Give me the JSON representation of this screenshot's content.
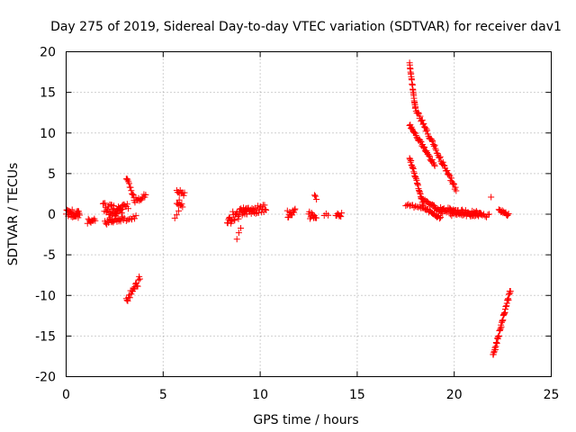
{
  "chart_data": {
    "type": "scatter",
    "title": "Day 275 of 2019, Sidereal Day-to-day VTEC variation (SDTVAR) for receiver dav1",
    "xlabel": "GPS time / hours",
    "ylabel": "SDTVAR / TECUs",
    "xlim": [
      0,
      25
    ],
    "ylim": [
      -20,
      20
    ],
    "xticks": [
      0,
      5,
      10,
      15,
      20,
      25
    ],
    "yticks": [
      -20,
      -15,
      -10,
      -5,
      0,
      5,
      10,
      15,
      20
    ],
    "grid": true,
    "marker": "+",
    "color": "#ff0000",
    "series": [
      {
        "name": "dav1",
        "segments": [
          {
            "x0": 0.0,
            "x1": 0.7,
            "y0": 0.2,
            "y1": 0.0,
            "jitter": 0.5,
            "n": 28
          },
          {
            "x0": 1.1,
            "x1": 1.5,
            "y0": -0.9,
            "y1": -0.7,
            "jitter": 0.3,
            "n": 10
          },
          {
            "x0": 1.9,
            "x1": 2.9,
            "y0": 0.8,
            "y1": 0.3,
            "jitter": 0.6,
            "n": 30
          },
          {
            "x0": 2.0,
            "x1": 3.0,
            "y0": -1.0,
            "y1": -0.5,
            "jitter": 0.4,
            "n": 22
          },
          {
            "x0": 2.2,
            "x1": 3.2,
            "y0": 0.0,
            "y1": 1.0,
            "jitter": 0.5,
            "n": 20
          },
          {
            "x0": 3.1,
            "x1": 3.5,
            "y0": 4.5,
            "y1": 2.0,
            "jitter": 0.2,
            "n": 12
          },
          {
            "x0": 3.5,
            "x1": 4.1,
            "y0": 1.6,
            "y1": 2.3,
            "jitter": 0.3,
            "n": 14
          },
          {
            "x0": 3.1,
            "x1": 3.6,
            "y0": -0.8,
            "y1": -0.2,
            "jitter": 0.3,
            "n": 8
          },
          {
            "x0": 3.1,
            "x1": 3.8,
            "y0": -10.8,
            "y1": -8.0,
            "jitter": 0.5,
            "n": 20
          },
          {
            "x0": 5.7,
            "x1": 6.1,
            "y0": 3.0,
            "y1": 2.5,
            "jitter": 0.3,
            "n": 10
          },
          {
            "x0": 5.7,
            "x1": 6.0,
            "y0": 1.5,
            "y1": 1.2,
            "jitter": 0.4,
            "n": 8
          },
          {
            "x0": 5.6,
            "x1": 5.8,
            "y0": -0.3,
            "y1": 0.2,
            "jitter": 0.3,
            "n": 3
          },
          {
            "x0": 8.3,
            "x1": 9.3,
            "y0": -0.7,
            "y1": 0.5,
            "jitter": 0.7,
            "n": 32
          },
          {
            "x0": 8.8,
            "x1": 9.0,
            "y0": -2.8,
            "y1": -2.0,
            "jitter": 0.3,
            "n": 3
          },
          {
            "x0": 9.2,
            "x1": 10.3,
            "y0": 0.2,
            "y1": 0.8,
            "jitter": 0.5,
            "n": 30
          },
          {
            "x0": 11.4,
            "x1": 11.8,
            "y0": 0.0,
            "y1": 0.6,
            "jitter": 0.6,
            "n": 14
          },
          {
            "x0": 12.5,
            "x1": 12.9,
            "y0": 0.0,
            "y1": -0.5,
            "jitter": 0.5,
            "n": 12
          },
          {
            "x0": 12.8,
            "x1": 12.9,
            "y0": 2.5,
            "y1": 1.8,
            "jitter": 0.2,
            "n": 3
          },
          {
            "x0": 13.3,
            "x1": 13.5,
            "y0": 0.0,
            "y1": 0.0,
            "jitter": 0.2,
            "n": 3
          },
          {
            "x0": 13.9,
            "x1": 14.2,
            "y0": -0.2,
            "y1": 0.0,
            "jitter": 0.3,
            "n": 8
          },
          {
            "x0": 17.7,
            "x1": 18.0,
            "y0": 18.5,
            "y1": 13.0,
            "jitter": 0.2,
            "n": 25
          },
          {
            "x0": 18.0,
            "x1": 20.1,
            "y0": 13.0,
            "y1": 3.0,
            "jitter": 0.3,
            "n": 60
          },
          {
            "x0": 17.7,
            "x1": 19.0,
            "y0": 11.0,
            "y1": 6.0,
            "jitter": 0.2,
            "n": 40
          },
          {
            "x0": 17.7,
            "x1": 18.4,
            "y0": 7.0,
            "y1": 1.2,
            "jitter": 0.2,
            "n": 30
          },
          {
            "x0": 17.5,
            "x1": 18.5,
            "y0": 1.2,
            "y1": 0.6,
            "jitter": 0.2,
            "n": 15
          },
          {
            "x0": 18.3,
            "x1": 19.4,
            "y0": 2.0,
            "y1": 0.2,
            "jitter": 0.2,
            "n": 24
          },
          {
            "x0": 18.5,
            "x1": 19.3,
            "y0": 0.7,
            "y1": -0.5,
            "jitter": 0.2,
            "n": 18
          },
          {
            "x0": 19.3,
            "x1": 21.4,
            "y0": 0.6,
            "y1": 0.0,
            "jitter": 0.3,
            "n": 50
          },
          {
            "x0": 19.8,
            "x1": 21.8,
            "y0": 0.0,
            "y1": -0.2,
            "jitter": 0.2,
            "n": 30
          },
          {
            "x0": 21.9,
            "x1": 21.9,
            "y0": 2.1,
            "y1": 2.1,
            "jitter": 0.0,
            "n": 1
          },
          {
            "x0": 22.3,
            "x1": 22.8,
            "y0": 0.4,
            "y1": -0.2,
            "jitter": 0.3,
            "n": 15
          },
          {
            "x0": 22.0,
            "x1": 22.9,
            "y0": -17.5,
            "y1": -9.4,
            "jitter": 0.3,
            "n": 45
          }
        ]
      }
    ]
  }
}
